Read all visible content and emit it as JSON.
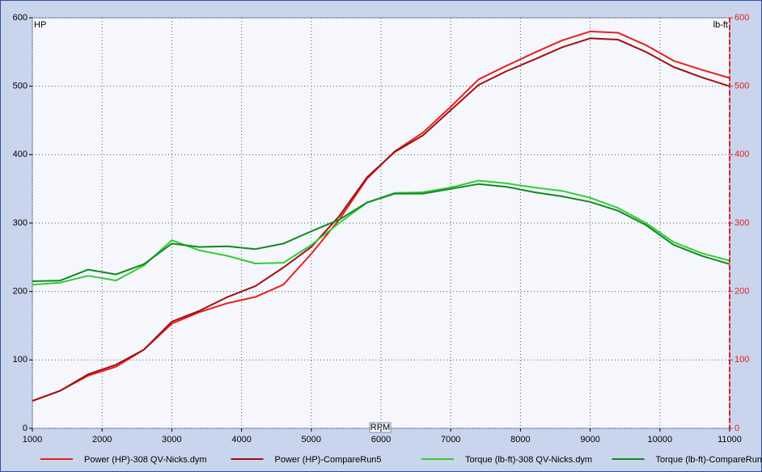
{
  "chart_data": {
    "type": "line",
    "x_label": "RPM",
    "y_label": "HP",
    "y2_label": "lb-ft",
    "x": [
      1000,
      1400,
      1800,
      2200,
      2600,
      3000,
      3400,
      3800,
      4200,
      4600,
      5000,
      5400,
      5800,
      6200,
      6600,
      7000,
      7400,
      7800,
      8200,
      8600,
      9000,
      9400,
      9800,
      10200,
      10600,
      11000
    ],
    "series": [
      {
        "name": "Power (HP)-308 QV-Nicks.dym",
        "color": "#e8201e",
        "values": [
          40,
          55,
          77,
          90,
          115,
          153,
          170,
          183,
          192,
          210,
          255,
          305,
          365,
          405,
          432,
          470,
          510,
          530,
          549,
          567,
          580,
          578,
          560,
          537,
          524,
          512
        ]
      },
      {
        "name": "Power (HP)-CompareRun5",
        "color": "#a01010",
        "values": [
          40,
          55,
          79,
          93,
          115,
          156,
          172,
          192,
          208,
          235,
          265,
          310,
          367,
          404,
          428,
          465,
          502,
          522,
          539,
          557,
          570,
          568,
          550,
          528,
          513,
          500
        ]
      },
      {
        "name": "Torque (lb-ft)-308 QV-Nicks.dym",
        "color": "#33cc33",
        "axis": "y2",
        "values": [
          210,
          213,
          223,
          216,
          238,
          275,
          260,
          252,
          241,
          242,
          268,
          300,
          330,
          344,
          345,
          352,
          362,
          358,
          352,
          347,
          337,
          322,
          300,
          272,
          256,
          245
        ]
      },
      {
        "name": "Torque (lb-ft)-CompareRun5",
        "color": "#0f8a20",
        "axis": "y2",
        "values": [
          215,
          216,
          232,
          225,
          240,
          270,
          265,
          266,
          262,
          270,
          288,
          305,
          330,
          343,
          343,
          350,
          357,
          353,
          345,
          339,
          331,
          318,
          297,
          268,
          252,
          240
        ]
      }
    ],
    "xlim": [
      1000,
      11000
    ],
    "xticks": [
      1000,
      2000,
      3000,
      4000,
      5000,
      6000,
      7000,
      8000,
      9000,
      10000,
      11000
    ],
    "ylim": [
      0,
      600
    ],
    "yticks": [
      0,
      100,
      200,
      300,
      400,
      500,
      600
    ],
    "y2lim": [
      0,
      600
    ],
    "y2ticks": [
      0,
      100,
      200,
      300,
      400,
      500,
      600
    ],
    "y2_color": "#e02020",
    "grid": true,
    "legend": "bottom"
  }
}
